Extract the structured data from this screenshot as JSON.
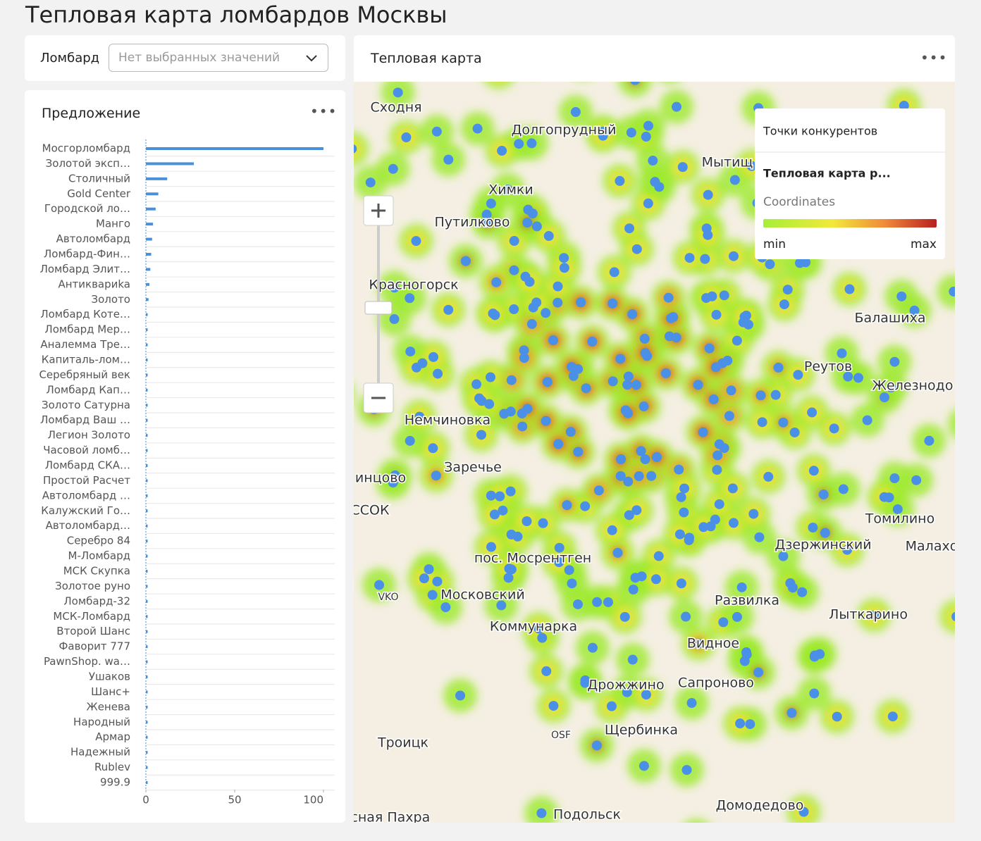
{
  "header": {
    "title": "Тепловая карта ломбардов Москвы"
  },
  "filter": {
    "label": "Ломбард",
    "placeholder": "Нет выбранных значений"
  },
  "chart_data": {
    "type": "hbar",
    "title": "Предложение",
    "color": "#4a90d9",
    "categories": [
      "Мосгорломбард",
      "Золотой эксп…",
      "Столичный",
      "Gold Center",
      "Городской ло…",
      "Манго",
      "Автоломбард",
      "Ломбард-Фин…",
      "Ломбард Элит…",
      "Антиквариka",
      "Золото",
      "Ломбард Коте…",
      "Ломбард Мер…",
      "Аналемма Тре…",
      "Капиталь-лом…",
      "Серебряный век",
      "Ломбард Кап…",
      "Золото Сатурна",
      "Ломбард Ваш …",
      "Легион Золото",
      "Часовой ломб…",
      "Ломбард СКА…",
      "Простой Расчет",
      "Автоломбард …",
      "Калужский Го…",
      "Автоломбард…",
      "Серебро 84",
      "М-Ломбард",
      "МСК Скупка",
      "Золотое руно",
      "Ломбард-32",
      "МСК-Ломбард",
      "Второй Шанс",
      "Фаворит 777",
      "PawnShop. wa…",
      "Ушаков",
      "Шанс+",
      "Женева",
      "Народный",
      "Армар",
      "Надежный",
      "Rublev",
      "999.9"
    ],
    "values": [
      100,
      27,
      12,
      7,
      5.5,
      4,
      3.5,
      3,
      2.5,
      2,
      1.5,
      1,
      1,
      1,
      1,
      1,
      1,
      1,
      1,
      1,
      1,
      1,
      1,
      1,
      1,
      1,
      1,
      1,
      1,
      1,
      1,
      1,
      1,
      1,
      1,
      1,
      1,
      1,
      1,
      1,
      1,
      1,
      1
    ],
    "xlim": [
      0,
      100
    ],
    "xticks": [
      0,
      50,
      100
    ],
    "grid": true
  },
  "map": {
    "title": "Тепловая карта",
    "legend": {
      "points": "Точки конкурентов",
      "heatmap": "Тепловая карта р...",
      "field": "Coordinates",
      "min": "min",
      "max": "max"
    },
    "places": [
      "Сходня",
      "Долгопрудный",
      "Химки",
      "Мытищ",
      "Путилково",
      "Красногорск",
      "Балашиха",
      "Реутов",
      "Железнодо",
      "Немчиновка",
      "Заречье",
      "инцово",
      "ССОК",
      "Томилино",
      "Дзержинский",
      "Малахо",
      "пос. Мосрентген",
      "Московский",
      "Развилка",
      "Лыткарино",
      "Коммунарка",
      "Видное",
      "Дрожжино",
      "Сапроново",
      "Троицк",
      "Щербинка",
      "Подольск",
      "Домодедово",
      "асная Пахра",
      "VKO",
      "OSF"
    ]
  }
}
